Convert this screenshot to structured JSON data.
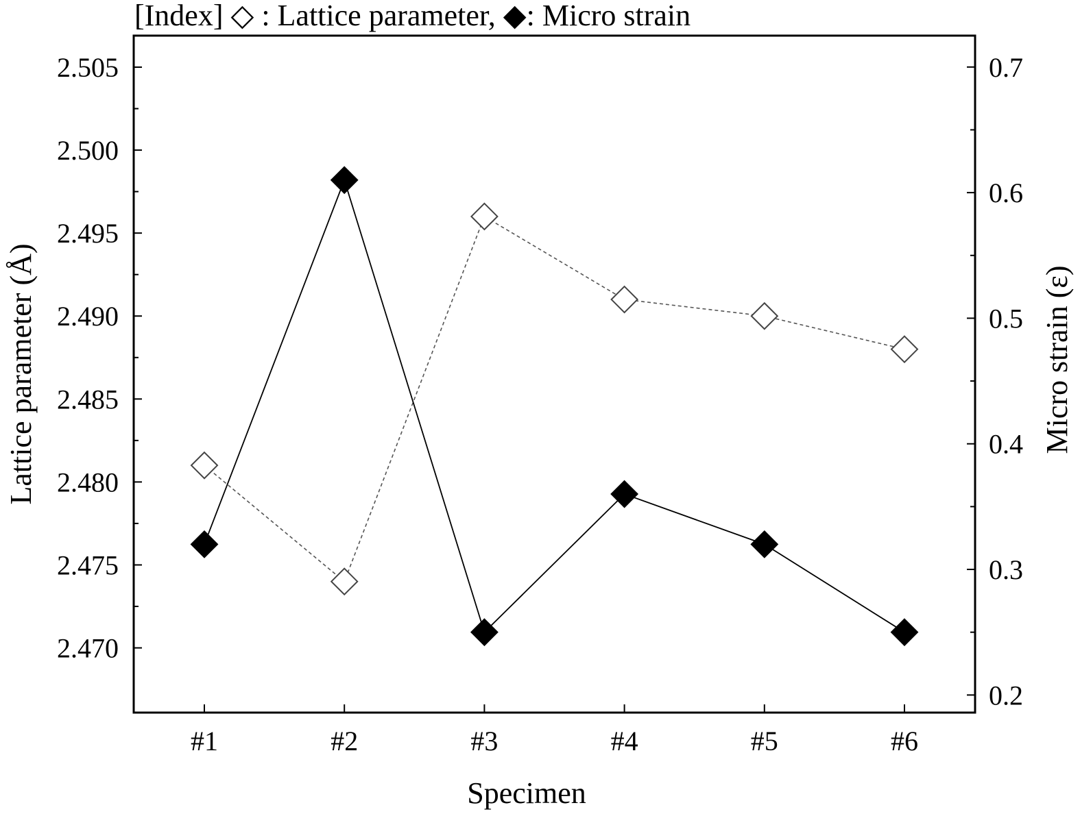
{
  "chart_data": {
    "type": "line",
    "title": "[Index] ◇ : Lattice parameter, ◆: Micro strain",
    "xlabel": "Specimen",
    "ylabel": "Lattice parameter (Å)",
    "y2label": "Micro strain (ε)",
    "categories": [
      "#1",
      "#2",
      "#3",
      "#4",
      "#5",
      "#6"
    ],
    "ylim": [
      2.4661,
      2.5069
    ],
    "y2lim": [
      0.186,
      0.725
    ],
    "yticks": [
      "2.470",
      "2.475",
      "2.480",
      "2.485",
      "2.490",
      "2.495",
      "2.500",
      "2.505"
    ],
    "y2ticks": [
      "0.2",
      "0.3",
      "0.4",
      "0.5",
      "0.6",
      "0.7"
    ],
    "grid": false,
    "legend": "title",
    "series": [
      {
        "name": "Lattice parameter",
        "axis": "left",
        "marker": "open-diamond",
        "line": "dashed",
        "color": "#555555",
        "values": [
          2.481,
          2.474,
          2.496,
          2.491,
          2.49,
          2.488
        ]
      },
      {
        "name": "Micro strain",
        "axis": "right",
        "marker": "filled-diamond",
        "line": "solid",
        "color": "#000000",
        "values": [
          0.32,
          0.61,
          0.25,
          0.36,
          0.32,
          0.25
        ]
      }
    ]
  }
}
